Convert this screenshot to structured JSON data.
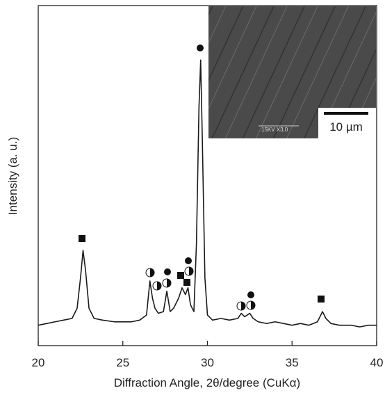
{
  "chart_data": {
    "type": "line",
    "xlabel": "Diffraction Angle, 2θ/degree (CuKα)",
    "ylabel": "Intensity (a. u.)",
    "xlim": [
      20,
      40
    ],
    "xticks": [
      20,
      25,
      30,
      35,
      40
    ],
    "ylim": [
      0,
      100
    ],
    "color": "#1a1a1a",
    "x": [
      20.0,
      20.5,
      21.0,
      21.5,
      22.0,
      22.3,
      22.5,
      22.65,
      22.8,
      23.0,
      23.3,
      23.8,
      24.5,
      25.0,
      25.5,
      26.0,
      26.4,
      26.6,
      26.75,
      26.9,
      27.1,
      27.4,
      27.6,
      27.8,
      28.0,
      28.3,
      28.5,
      28.7,
      28.85,
      29.0,
      29.2,
      29.35,
      29.5,
      29.6,
      29.7,
      29.85,
      30.0,
      30.3,
      30.8,
      31.3,
      31.8,
      32.0,
      32.2,
      32.5,
      32.7,
      33.0,
      33.5,
      34.0,
      34.5,
      35.0,
      35.5,
      36.0,
      36.5,
      36.8,
      37.0,
      37.3,
      37.8,
      38.5,
      39.0,
      39.5,
      40.0
    ],
    "values": [
      6.0,
      6.5,
      7,
      7.5,
      8,
      11,
      20,
      28,
      22,
      11,
      8,
      7.5,
      7,
      7,
      7,
      7.5,
      9,
      19,
      14,
      11,
      9.5,
      10,
      16,
      10,
      11,
      14,
      17,
      15,
      17,
      12,
      10,
      30,
      70,
      84,
      60,
      20,
      9,
      7.5,
      8,
      7.5,
      8,
      9.5,
      8.5,
      9.5,
      8,
      7,
      6.5,
      7,
      6.5,
      6,
      6.5,
      6,
      7,
      10,
      8,
      6.5,
      6,
      6,
      5.5,
      6,
      6
    ],
    "inset": {
      "caption": "15KV X3,0",
      "scale_bar": "10 µm"
    }
  }
}
